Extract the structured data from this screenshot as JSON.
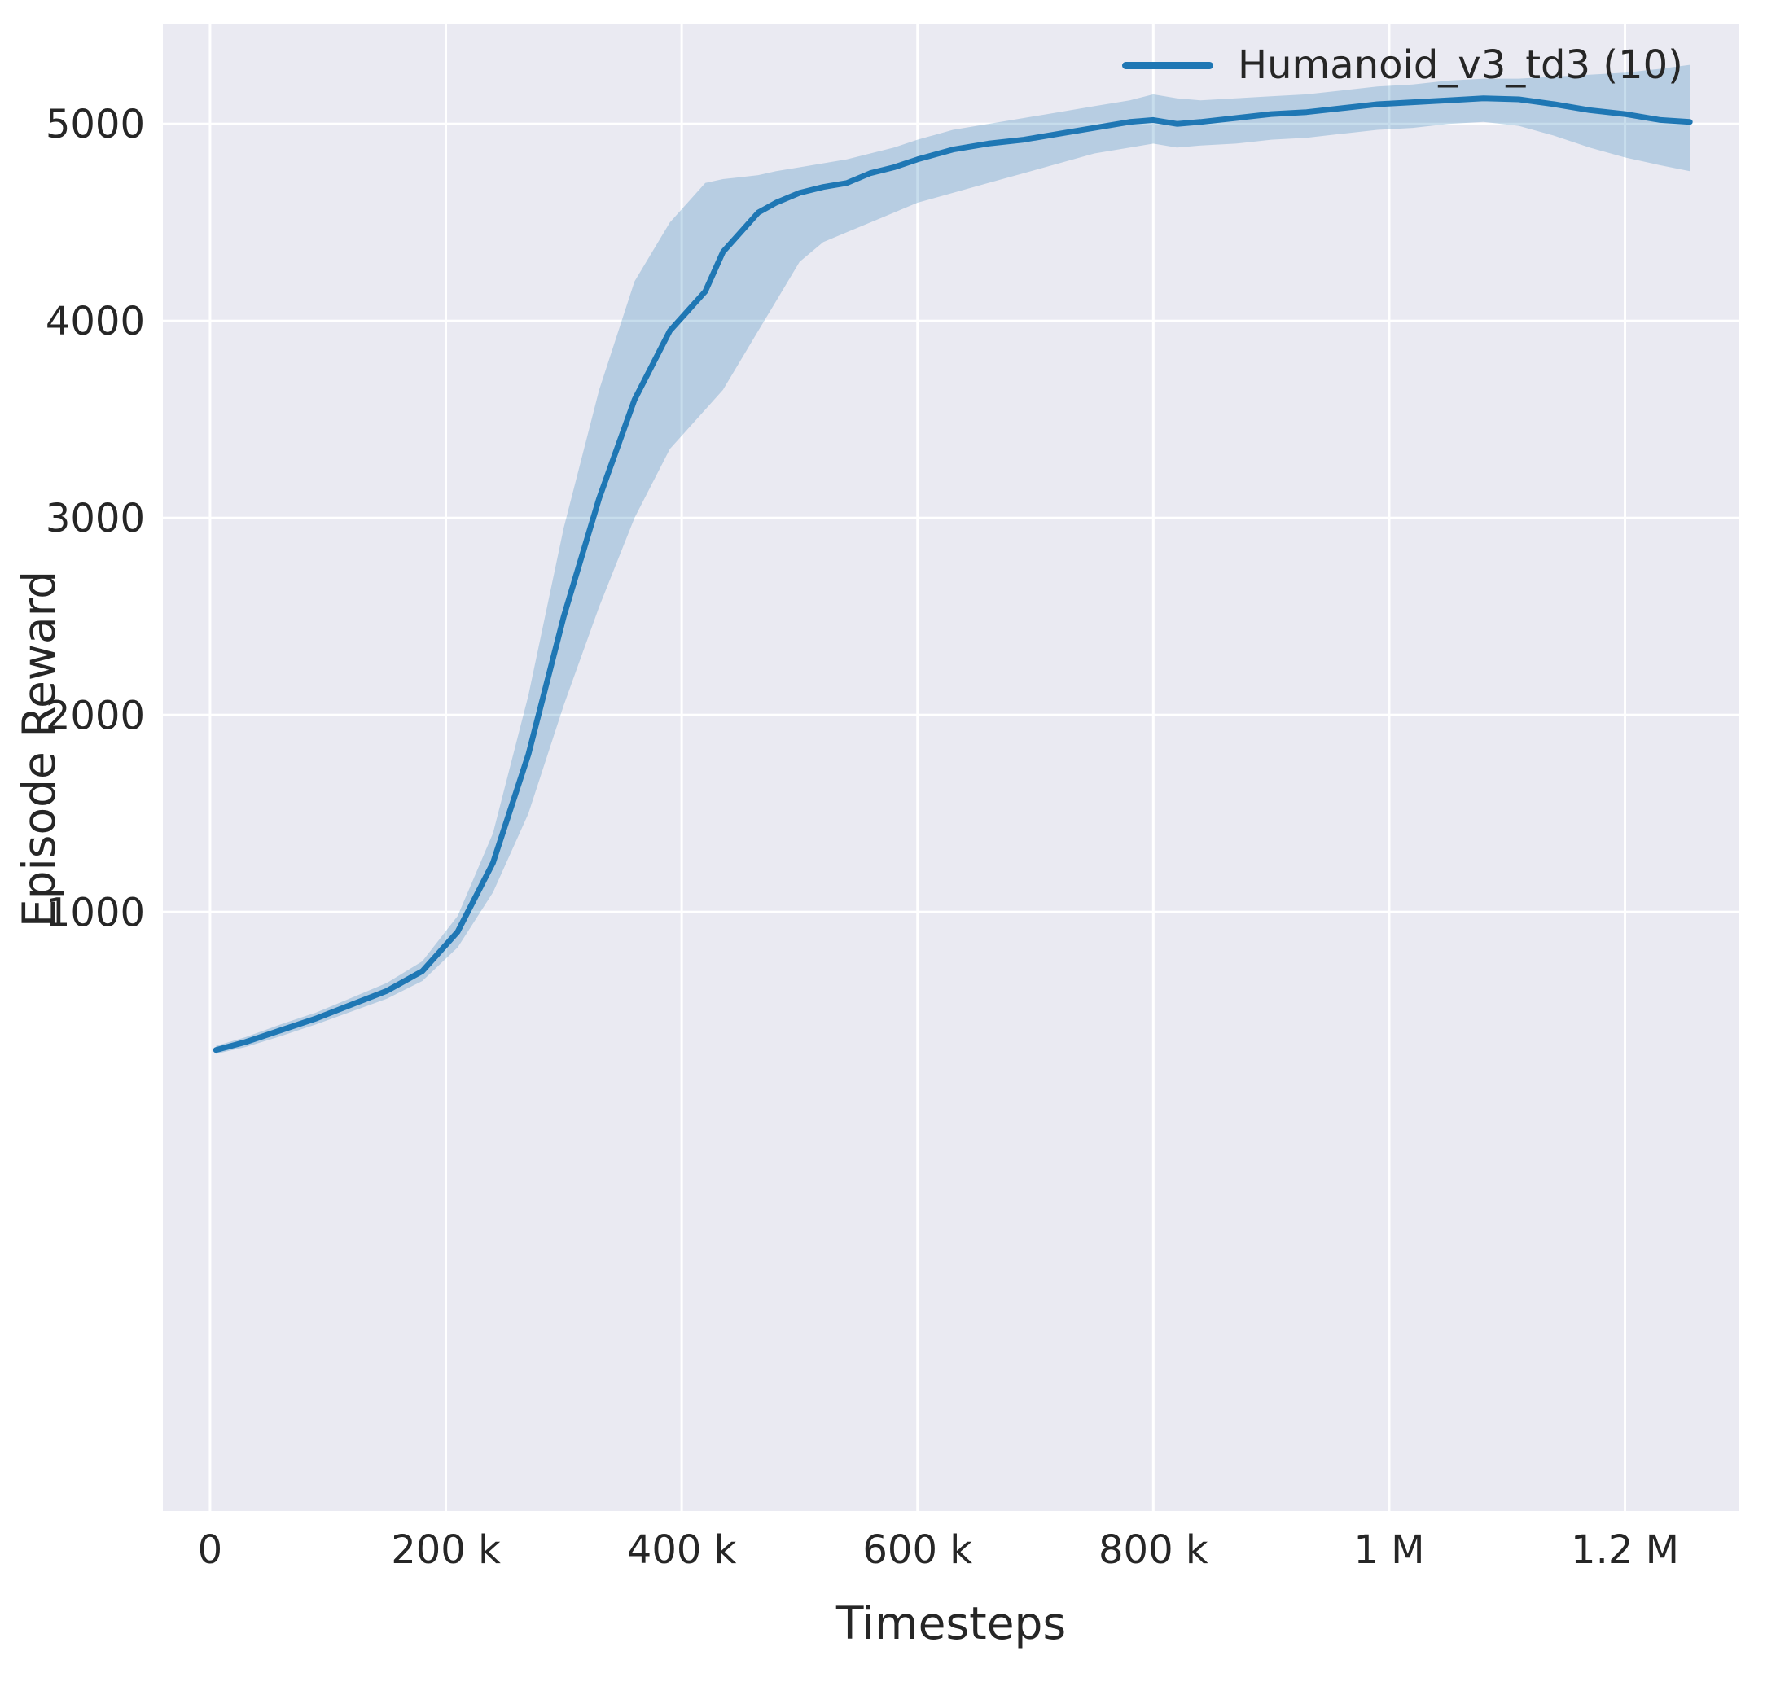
{
  "chart_data": {
    "type": "line",
    "title": "",
    "xlabel": "Timesteps",
    "ylabel": "Episode Reward",
    "legend_position": "upper right",
    "grid": true,
    "xlim": [
      -40000,
      1297000
    ],
    "ylim": [
      -2040,
      5505
    ],
    "xticks": [
      {
        "value": 0,
        "label": "0"
      },
      {
        "value": 200000,
        "label": "200 k"
      },
      {
        "value": 400000,
        "label": "400 k"
      },
      {
        "value": 600000,
        "label": "600 k"
      },
      {
        "value": 800000,
        "label": "800 k"
      },
      {
        "value": 1000000,
        "label": "1 M"
      },
      {
        "value": 1200000,
        "label": "1.2 M"
      }
    ],
    "yticks": [
      {
        "value": 1000,
        "label": "1000"
      },
      {
        "value": 2000,
        "label": "2000"
      },
      {
        "value": 3000,
        "label": "3000"
      },
      {
        "value": 4000,
        "label": "4000"
      },
      {
        "value": 5000,
        "label": "5000"
      }
    ],
    "colors": {
      "line": "#1f77b4",
      "band": "#1f77b4",
      "band_opacity": 0.25,
      "plot_bg": "#eaeaf2",
      "grid": "#ffffff",
      "text": "#262626"
    },
    "series": [
      {
        "name": "Humanoid_v3_td3 (10)",
        "x": [
          5000,
          30000,
          60000,
          90000,
          120000,
          150000,
          180000,
          210000,
          240000,
          270000,
          300000,
          330000,
          360000,
          390000,
          405000,
          420000,
          435000,
          450000,
          465000,
          480000,
          500000,
          520000,
          540000,
          560000,
          580000,
          600000,
          630000,
          660000,
          690000,
          720000,
          750000,
          780000,
          800000,
          820000,
          840000,
          870000,
          900000,
          930000,
          960000,
          990000,
          1020000,
          1050000,
          1080000,
          1110000,
          1140000,
          1170000,
          1200000,
          1230000,
          1255000
        ],
        "mean": [
          300,
          340,
          400,
          460,
          530,
          600,
          700,
          900,
          1250,
          1800,
          2500,
          3100,
          3600,
          3950,
          4050,
          4150,
          4350,
          4450,
          4550,
          4600,
          4650,
          4680,
          4700,
          4750,
          4780,
          4820,
          4870,
          4900,
          4920,
          4950,
          4980,
          5010,
          5020,
          5000,
          5010,
          5030,
          5050,
          5060,
          5080,
          5100,
          5110,
          5120,
          5130,
          5125,
          5100,
          5070,
          5050,
          5020,
          5010
        ],
        "ci_low": [
          280,
          315,
          370,
          430,
          495,
          560,
          650,
          820,
          1100,
          1500,
          2050,
          2550,
          3000,
          3350,
          3450,
          3550,
          3650,
          3800,
          3950,
          4100,
          4300,
          4400,
          4450,
          4500,
          4550,
          4600,
          4650,
          4700,
          4750,
          4800,
          4850,
          4880,
          4900,
          4880,
          4890,
          4900,
          4920,
          4930,
          4950,
          4970,
          4980,
          5000,
          5010,
          4990,
          4940,
          4880,
          4830,
          4790,
          4760
        ],
        "ci_high": [
          320,
          365,
          430,
          490,
          565,
          640,
          750,
          980,
          1400,
          2100,
          2950,
          3650,
          4200,
          4500,
          4600,
          4700,
          4720,
          4730,
          4740,
          4760,
          4780,
          4800,
          4820,
          4850,
          4880,
          4920,
          4970,
          5000,
          5030,
          5060,
          5090,
          5120,
          5150,
          5130,
          5120,
          5130,
          5140,
          5150,
          5170,
          5190,
          5200,
          5220,
          5230,
          5230,
          5240,
          5250,
          5260,
          5280,
          5300
        ]
      }
    ]
  }
}
